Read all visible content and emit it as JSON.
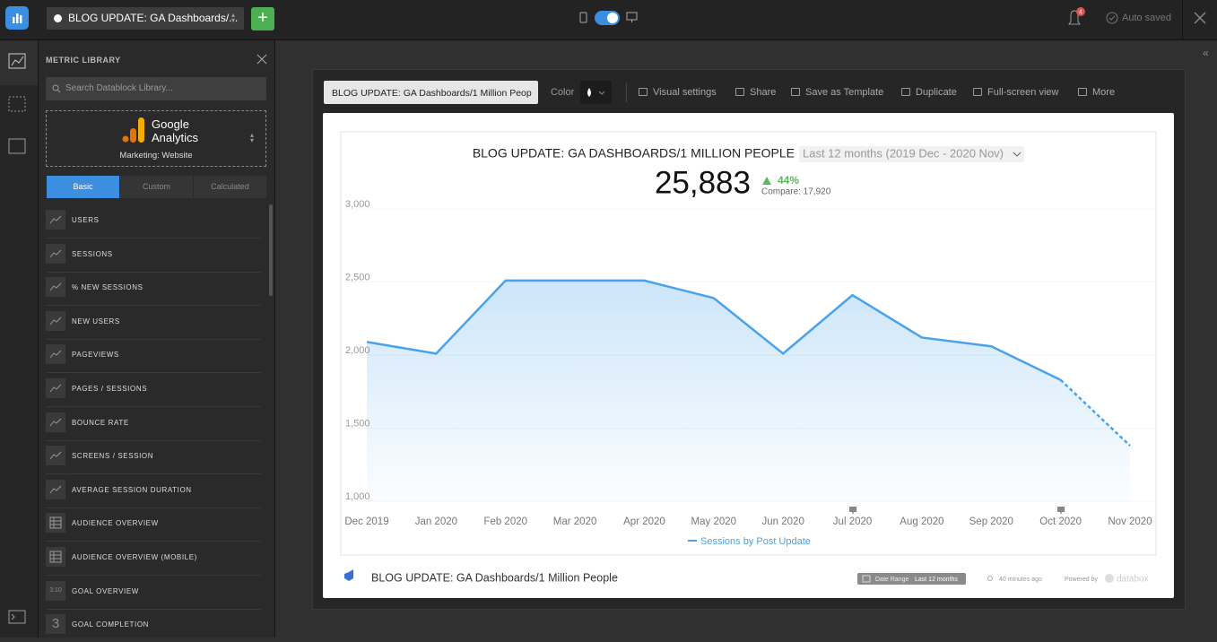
{
  "top_bar": {
    "dashboard_name": "BLOG UPDATE: GA Dashboards/...",
    "notification_count": "4",
    "status": "Auto saved"
  },
  "sidebar": {
    "title": "METRIC LIBRARY",
    "search_placeholder": "Search Datablock Library...",
    "source_name_line_1": "Google",
    "source_name_line_2": "Analytics",
    "source_category": "Marketing: Website",
    "tabs": [
      "Basic",
      "Custom",
      "Calculated"
    ],
    "metrics": [
      {
        "label": "USERS"
      },
      {
        "label": "SESSIONS"
      },
      {
        "label": "% NEW SESSIONS"
      },
      {
        "label": "NEW USERS"
      },
      {
        "label": "PAGEVIEWS"
      },
      {
        "label": "PAGES / SESSIONS"
      },
      {
        "label": "BOUNCE RATE"
      },
      {
        "label": "SCREENS / SESSION"
      },
      {
        "label": "AVERAGE SESSION DURATION"
      },
      {
        "label": "AUDIENCE OVERVIEW",
        "icon_kind": "table"
      },
      {
        "label": "AUDIENCE OVERVIEW (MOBILE)",
        "icon_kind": "table"
      },
      {
        "label": "GOAL OVERVIEW",
        "icon": "3:10"
      },
      {
        "label": "GOAL COMPLETION",
        "icon": "3"
      }
    ]
  },
  "toolbar": {
    "datablock_name": "BLOG UPDATE: GA Dashboards/1 Million Peop",
    "color_label": "Color",
    "actions": [
      "Visual settings",
      "Share",
      "Save as Template",
      "Duplicate",
      "Full-screen view",
      "More"
    ]
  },
  "chart_data": {
    "type": "line",
    "title": "BLOG UPDATE: GA DASHBOARDS/1 MILLION PEOPLE",
    "date_range": "Last 12 months (2019 Dec - 2020 Nov)",
    "total": "25,883",
    "change": "44%",
    "compare": "Compare: 17,920",
    "categories": [
      "Dec 2019",
      "Jan 2020",
      "Feb 2020",
      "Mar 2020",
      "Apr 2020",
      "May 2020",
      "Jun 2020",
      "Jul 2020",
      "Aug 2020",
      "Sep 2020",
      "Oct 2020",
      "Nov 2020"
    ],
    "series": [
      {
        "name": "Sessions by Post Update",
        "color": "#4aa3ea",
        "values": [
          2090,
          2010,
          2510,
          2510,
          2510,
          2390,
          2010,
          2410,
          2120,
          2060,
          1830,
          1380
        ]
      }
    ],
    "last_segment_dashed": true,
    "ylim": [
      1000,
      3000
    ],
    "yticks": [
      {
        "value": 1000,
        "label": "1,000"
      },
      {
        "value": 1500,
        "label": "1,500"
      },
      {
        "value": 2000,
        "label": "2,000"
      },
      {
        "value": 2500,
        "label": "2,500"
      },
      {
        "value": 3000,
        "label": "3,000"
      }
    ],
    "grid": true
  },
  "footer": {
    "datablock_name": "BLOG UPDATE: GA Dashboards/1 Million People",
    "date_range_label": "Date Range",
    "date_range_value": "Last 12 months",
    "updated": "40 minutes ago",
    "powered_by": "Powered by",
    "brand": "databox"
  }
}
